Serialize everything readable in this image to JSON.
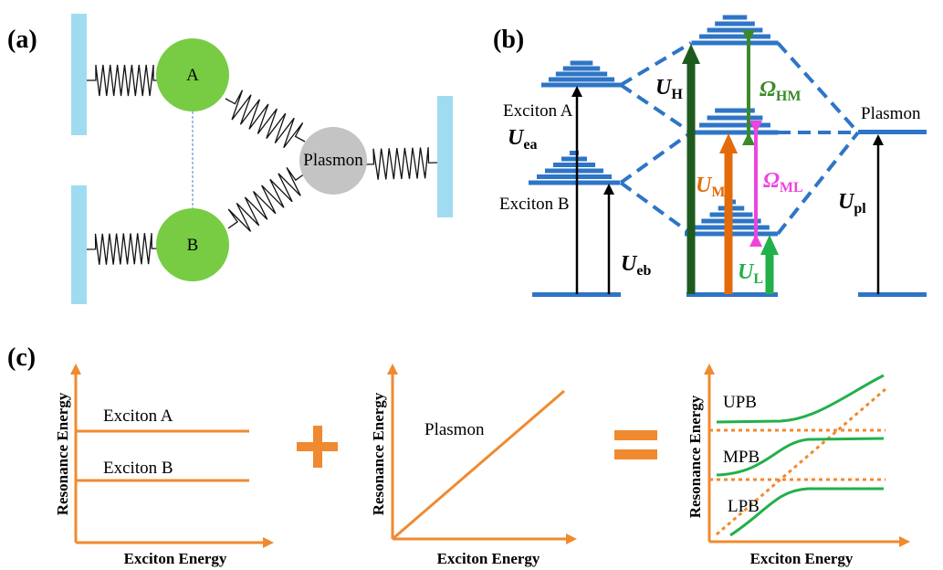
{
  "panel_a": {
    "label": "(a)",
    "masses": [
      "A",
      "B",
      "Plasmon"
    ]
  },
  "panel_b": {
    "label": "(b)",
    "states": [
      "Exciton A",
      "Exciton B",
      "Plasmon"
    ],
    "energies": [
      {
        "symbol": "U",
        "subscript": "ea"
      },
      {
        "symbol": "U",
        "subscript": "eb"
      },
      {
        "symbol": "U",
        "subscript": "pl"
      },
      {
        "symbol": "U",
        "subscript": "H"
      },
      {
        "symbol": "U",
        "subscript": "M"
      },
      {
        "symbol": "U",
        "subscript": "L"
      },
      {
        "symbol": "Ω",
        "subscript": "HM"
      },
      {
        "symbol": "Ω",
        "subscript": "ML"
      }
    ]
  },
  "panel_c": {
    "label": "(c)",
    "plots": [
      {
        "y_label": "Resonance Energy",
        "x_label": "Exciton Energy",
        "curves": [
          "Exciton A",
          "Exciton B"
        ]
      },
      {
        "y_label": "Resonance Energy",
        "x_label": "Exciton Energy",
        "curves": [
          "Plasmon"
        ]
      },
      {
        "y_label": "Resonance Energy",
        "x_label": "Exciton Energy",
        "curves": [
          "UPB",
          "MPB",
          "LPB"
        ]
      }
    ]
  }
}
